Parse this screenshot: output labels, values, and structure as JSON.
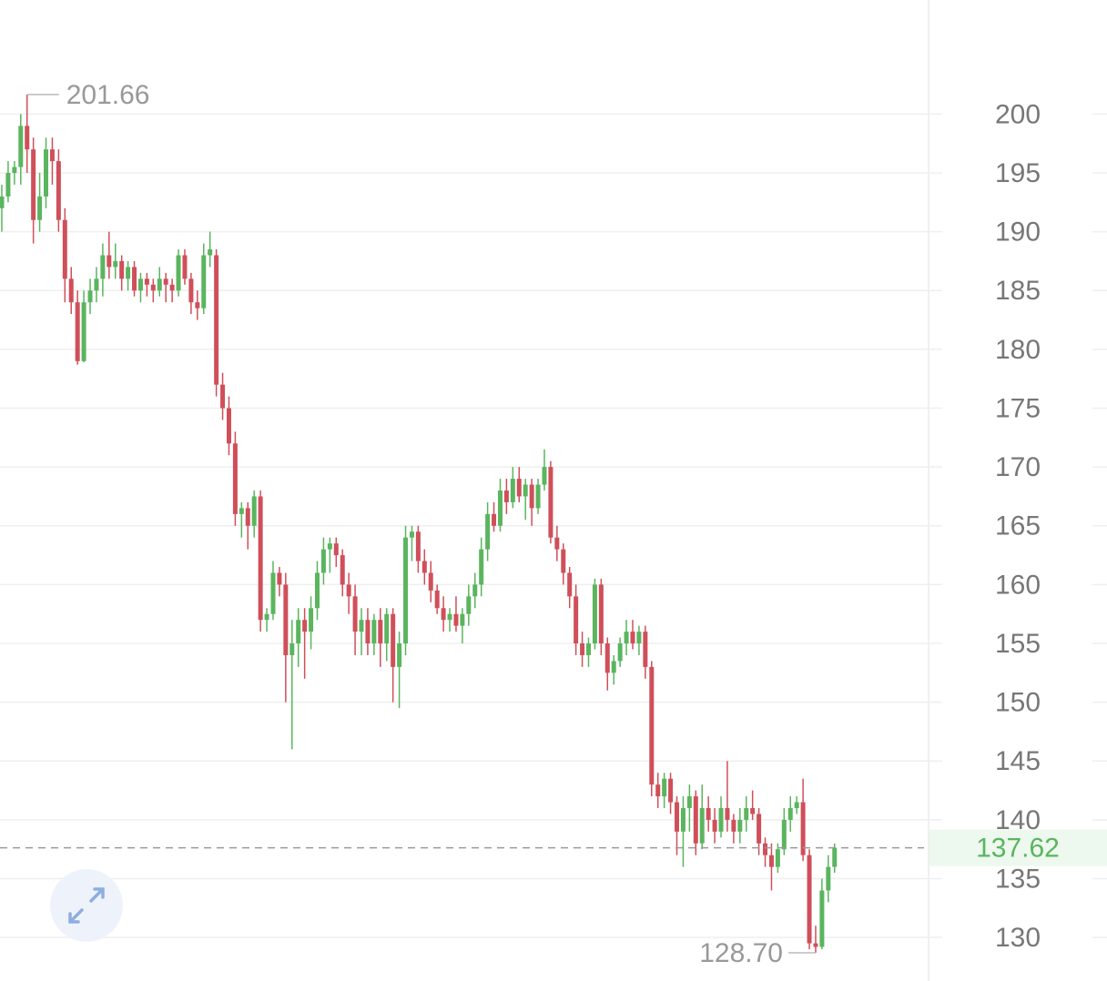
{
  "chart_data": {
    "type": "candlestick",
    "up_color": "#5ab55e",
    "down_color": "#cf4f5a",
    "ylim": [
      126.3,
      209.7
    ],
    "yticks": [
      130,
      135,
      140,
      145,
      150,
      155,
      160,
      165,
      170,
      175,
      180,
      185,
      190,
      195,
      200
    ],
    "grid": true,
    "max_label": 201.66,
    "min_label": {
      "value": 128.7,
      "label": "128.70"
    },
    "last_price": 137.62,
    "candles": [
      [
        192,
        194,
        190,
        193
      ],
      [
        193,
        196,
        192.5,
        195
      ],
      [
        195,
        196,
        194,
        195.5
      ],
      [
        195.5,
        200,
        194,
        199
      ],
      [
        199,
        201.66,
        195,
        197
      ],
      [
        197,
        198,
        189,
        191
      ],
      [
        191,
        195,
        190,
        193
      ],
      [
        193,
        198,
        192,
        197
      ],
      [
        197,
        198,
        194,
        196
      ],
      [
        196,
        197,
        190,
        191
      ],
      [
        191,
        192,
        184,
        186
      ],
      [
        186,
        187,
        183,
        184
      ],
      [
        184,
        185,
        178.7,
        179
      ],
      [
        179,
        185,
        178.9,
        184
      ],
      [
        184,
        186,
        183,
        185
      ],
      [
        185,
        187,
        184,
        186
      ],
      [
        186,
        189,
        184.5,
        188
      ],
      [
        188,
        190,
        186,
        187
      ],
      [
        187,
        189,
        186,
        187.5
      ],
      [
        187.5,
        188,
        185,
        186
      ],
      [
        186,
        187.5,
        185,
        187
      ],
      [
        187,
        187.5,
        184.5,
        185
      ],
      [
        185,
        186.5,
        184,
        186
      ],
      [
        186,
        186.5,
        184.5,
        185.5
      ],
      [
        185.5,
        186,
        184,
        185
      ],
      [
        185,
        187,
        184.5,
        186
      ],
      [
        186,
        186.5,
        184,
        185.5
      ],
      [
        185.5,
        186,
        184,
        185
      ],
      [
        185,
        188.5,
        184.5,
        188
      ],
      [
        188,
        188.5,
        185.5,
        186
      ],
      [
        186,
        186.5,
        183,
        184
      ],
      [
        184,
        185,
        182.5,
        183.5
      ],
      [
        183.5,
        189,
        183,
        188
      ],
      [
        188,
        190,
        187,
        188.5
      ],
      [
        188,
        188.5,
        176,
        177
      ],
      [
        177,
        178,
        174,
        175
      ],
      [
        175,
        176,
        171,
        172
      ],
      [
        172,
        173,
        165,
        166
      ],
      [
        166,
        167,
        164,
        166.5
      ],
      [
        166.5,
        167,
        163,
        165
      ],
      [
        165,
        168,
        164,
        167.5
      ],
      [
        167.5,
        168,
        156,
        157
      ],
      [
        157,
        158,
        156,
        157.5
      ],
      [
        157.5,
        162,
        157,
        161
      ],
      [
        161,
        161.5,
        159,
        160
      ],
      [
        160,
        161,
        150,
        154
      ],
      [
        154,
        157,
        146,
        155
      ],
      [
        155,
        158,
        153,
        157
      ],
      [
        157,
        158,
        152,
        156
      ],
      [
        156,
        159,
        154.5,
        158
      ],
      [
        158,
        162,
        157,
        161
      ],
      [
        161,
        164,
        160,
        163
      ],
      [
        163,
        164,
        161,
        163.5
      ],
      [
        163.5,
        164,
        161.5,
        162.5
      ],
      [
        162.5,
        163,
        159,
        160
      ],
      [
        160,
        161,
        157.5,
        159
      ],
      [
        159,
        160,
        154,
        156
      ],
      [
        156,
        158,
        154,
        157
      ],
      [
        157,
        158,
        154,
        155
      ],
      [
        155,
        157.5,
        154,
        157
      ],
      [
        157,
        158,
        153,
        155
      ],
      [
        155,
        158,
        153.5,
        157.5
      ],
      [
        157.5,
        158,
        150,
        153
      ],
      [
        153,
        156,
        149.5,
        155
      ],
      [
        155,
        165,
        154,
        164
      ],
      [
        164,
        165,
        162,
        164.5
      ],
      [
        164.5,
        165,
        161,
        162
      ],
      [
        162,
        163,
        160,
        161
      ],
      [
        161,
        162,
        158.5,
        159.5
      ],
      [
        159.5,
        160,
        157.5,
        158
      ],
      [
        158,
        159,
        156,
        157
      ],
      [
        157,
        158,
        156,
        157.5
      ],
      [
        157.5,
        159,
        156,
        156.5
      ],
      [
        156.5,
        158,
        155,
        157.5
      ],
      [
        157.5,
        160,
        156.5,
        159
      ],
      [
        159,
        161,
        158,
        160
      ],
      [
        160,
        164,
        159,
        163
      ],
      [
        163,
        167,
        162,
        166
      ],
      [
        166,
        167,
        164.5,
        165
      ],
      [
        165,
        169,
        164.5,
        168
      ],
      [
        168,
        169,
        166,
        167
      ],
      [
        167,
        170,
        166.5,
        169
      ],
      [
        169,
        170,
        167,
        167.5
      ],
      [
        167.5,
        169,
        165.5,
        168.5
      ],
      [
        168.5,
        169,
        165,
        166.5
      ],
      [
        166.5,
        169,
        166,
        168.5
      ],
      [
        168.5,
        171.5,
        168,
        170
      ],
      [
        170,
        170.5,
        163.5,
        164
      ],
      [
        164,
        165,
        162,
        163
      ],
      [
        163,
        163.5,
        160,
        161
      ],
      [
        161,
        161.5,
        158,
        159
      ],
      [
        159,
        160,
        154,
        155
      ],
      [
        155,
        156,
        153,
        154
      ],
      [
        154,
        155.5,
        153,
        155
      ],
      [
        155,
        160.5,
        154.5,
        160
      ],
      [
        160,
        160.5,
        154,
        155
      ],
      [
        155,
        155.5,
        151,
        152.5
      ],
      [
        152.5,
        154,
        151.5,
        153.5
      ],
      [
        153.5,
        155.5,
        153,
        155
      ],
      [
        155,
        157,
        154,
        156
      ],
      [
        156,
        157,
        154.5,
        155
      ],
      [
        155,
        156.5,
        154,
        156
      ],
      [
        156,
        156.5,
        152,
        153
      ],
      [
        153,
        153.5,
        142,
        143
      ],
      [
        143,
        144,
        141,
        142
      ],
      [
        142,
        144,
        141,
        143.5
      ],
      [
        143.5,
        144,
        140.5,
        141.5
      ],
      [
        141.5,
        142,
        137,
        139
      ],
      [
        139,
        142,
        136,
        141
      ],
      [
        141,
        143,
        139,
        142
      ],
      [
        142,
        142.5,
        137,
        138
      ],
      [
        138,
        143,
        137.5,
        141
      ],
      [
        141,
        142,
        139,
        140
      ],
      [
        140,
        141,
        138,
        139
      ],
      [
        139,
        142,
        138.5,
        141
      ],
      [
        141,
        145,
        139,
        140
      ],
      [
        140,
        140.5,
        138,
        139
      ],
      [
        139,
        141,
        138,
        140
      ],
      [
        140,
        142,
        139,
        141
      ],
      [
        141,
        142.5,
        140,
        140.5
      ],
      [
        140.5,
        141,
        137,
        138
      ],
      [
        138,
        138.5,
        136,
        137
      ],
      [
        137,
        138,
        134,
        136
      ],
      [
        136,
        138,
        135.5,
        137.5
      ],
      [
        137.5,
        141,
        137,
        140
      ],
      [
        140,
        142,
        139,
        141
      ],
      [
        141,
        142,
        140.5,
        141.5
      ],
      [
        141.5,
        143.5,
        136.5,
        137
      ],
      [
        137,
        137.5,
        129,
        129.5
      ],
      [
        129.5,
        131,
        128.7,
        129.2
      ],
      [
        129.2,
        135,
        129,
        134
      ],
      [
        134,
        137,
        133,
        136
      ],
      [
        136,
        138,
        135.5,
        137.62
      ]
    ]
  }
}
